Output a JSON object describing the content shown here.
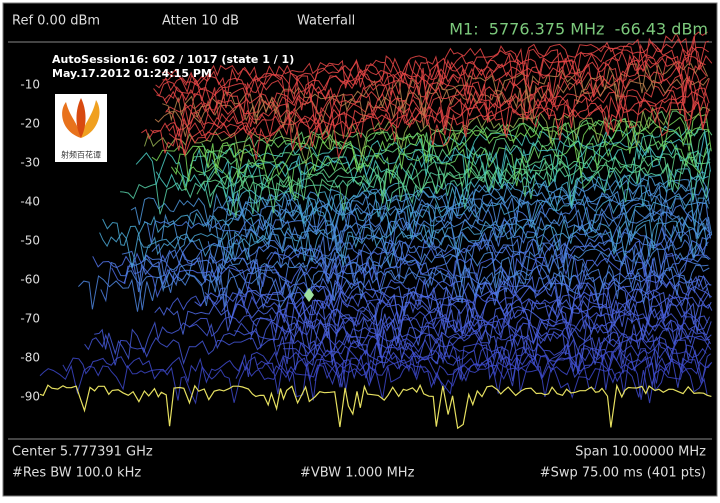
{
  "header": {
    "ref": "Ref 0.00 dBm",
    "atten": "Atten 10 dB",
    "mode": "Waterfall",
    "marker": "M1:  5776.375 MHz  -66.43 dBm"
  },
  "session": {
    "name": "AutoSession16: 602 / 1017 (state 1 / 1)",
    "timestamp": "May.17.2012 01:24:15 PM"
  },
  "logo": {
    "caption": "射频百花谭"
  },
  "axis": {
    "yticks": [
      -10,
      -20,
      -30,
      -40,
      -50,
      -60,
      -70,
      -80,
      -90
    ]
  },
  "footer": {
    "center": "Center 5.777391 GHz",
    "span": "Span 10.00000 MHz",
    "rbw": "#Res BW 100.0 kHz",
    "vbw": "#VBW 1.000 MHz",
    "swp": "#Swp 75.00 ms (401 pts)"
  }
}
